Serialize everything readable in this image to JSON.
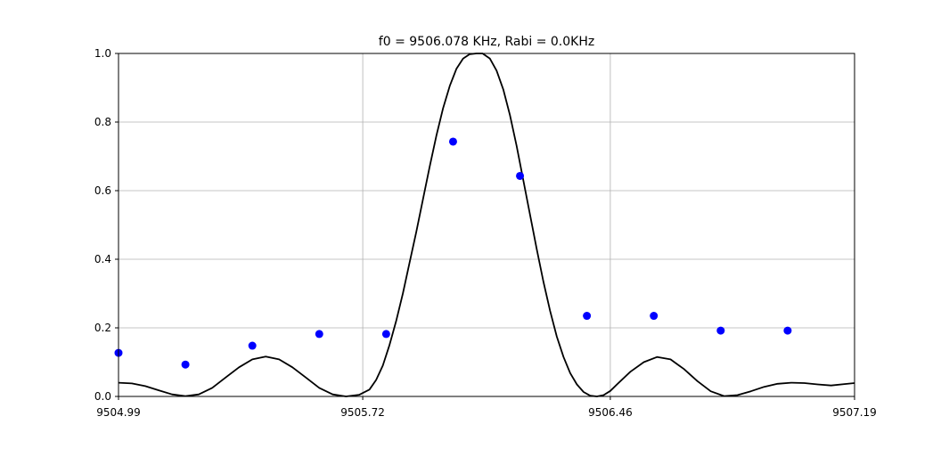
{
  "chart_data": {
    "type": "scatter",
    "title": "f0 = 9506.078 KHz, Rabi = 0.0KHz",
    "xlabel": "",
    "ylabel": "",
    "xlim": [
      9504.99,
      9507.19
    ],
    "ylim": [
      0.0,
      1.0
    ],
    "x_ticks": [
      9504.99,
      9505.72,
      9506.46,
      9507.19
    ],
    "x_tick_labels": [
      "9504.99",
      "9505.72",
      "9506.46",
      "9507.19"
    ],
    "y_ticks": [
      0.0,
      0.2,
      0.4,
      0.6,
      0.8,
      1.0
    ],
    "y_tick_labels": [
      "0.0",
      "0.2",
      "0.4",
      "0.6",
      "0.8",
      "1.0"
    ],
    "grid": true,
    "legend": "none",
    "series": [
      {
        "kind": "points",
        "color": "#0000ff",
        "x": [
          9504.99,
          9505.19,
          9505.39,
          9505.59,
          9505.79,
          9505.99,
          9506.19,
          9506.39,
          9506.59,
          9506.79,
          9506.99
        ],
        "y": [
          0.127,
          0.093,
          0.148,
          0.182,
          0.182,
          0.743,
          0.643,
          0.235,
          0.235,
          0.192,
          0.192
        ]
      },
      {
        "kind": "line",
        "color": "#000000",
        "x": [
          9504.99,
          9505.03,
          9505.07,
          9505.11,
          9505.15,
          9505.19,
          9505.23,
          9505.27,
          9505.31,
          9505.35,
          9505.39,
          9505.43,
          9505.47,
          9505.51,
          9505.55,
          9505.59,
          9505.63,
          9505.67,
          9505.71,
          9505.74,
          9505.76,
          9505.78,
          9505.8,
          9505.82,
          9505.84,
          9505.86,
          9505.88,
          9505.9,
          9505.92,
          9505.94,
          9505.96,
          9505.98,
          9506.0,
          9506.02,
          9506.04,
          9506.06,
          9506.078,
          9506.1,
          9506.12,
          9506.14,
          9506.16,
          9506.18,
          9506.2,
          9506.22,
          9506.24,
          9506.26,
          9506.28,
          9506.3,
          9506.32,
          9506.34,
          9506.36,
          9506.38,
          9506.4,
          9506.42,
          9506.44,
          9506.46,
          9506.48,
          9506.52,
          9506.56,
          9506.6,
          9506.64,
          9506.68,
          9506.72,
          9506.76,
          9506.8,
          9506.84,
          9506.88,
          9506.92,
          9506.96,
          9507.0,
          9507.04,
          9507.08,
          9507.12,
          9507.16,
          9507.19
        ],
        "y": [
          0.04,
          0.038,
          0.03,
          0.018,
          0.006,
          0.001,
          0.006,
          0.025,
          0.055,
          0.085,
          0.108,
          0.116,
          0.108,
          0.085,
          0.055,
          0.025,
          0.006,
          0.0,
          0.005,
          0.02,
          0.048,
          0.09,
          0.15,
          0.22,
          0.3,
          0.39,
          0.48,
          0.575,
          0.67,
          0.76,
          0.84,
          0.905,
          0.955,
          0.985,
          0.998,
          1.0,
          1.0,
          0.985,
          0.95,
          0.895,
          0.82,
          0.73,
          0.63,
          0.53,
          0.43,
          0.335,
          0.25,
          0.175,
          0.115,
          0.068,
          0.035,
          0.013,
          0.002,
          0.0,
          0.004,
          0.016,
          0.035,
          0.072,
          0.1,
          0.115,
          0.108,
          0.08,
          0.045,
          0.015,
          0.001,
          0.004,
          0.015,
          0.028,
          0.037,
          0.04,
          0.039,
          0.035,
          0.032,
          0.036,
          0.039
        ]
      }
    ]
  }
}
